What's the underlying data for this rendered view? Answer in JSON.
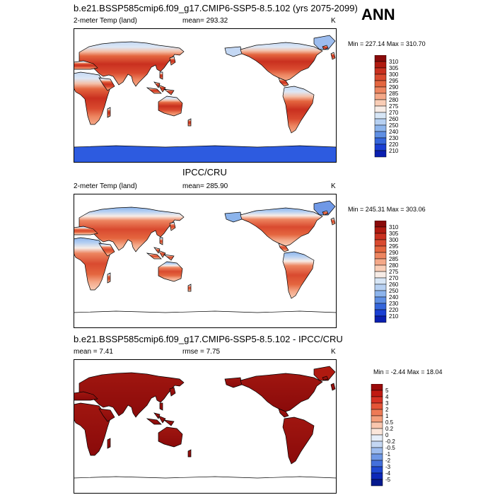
{
  "season": "ANN",
  "panels": [
    {
      "title": "b.e21.BSSP585cmip6.f09_g17.CMIP6-SSP5-8.5.102 (yrs 2075-2099)",
      "left_label": "2-meter Temp (land)",
      "center_label": "mean= 293.32",
      "units": "K",
      "minmax": "Min = 227.14 Max = 310.70",
      "colorbar": {
        "labels": [
          "310",
          "305",
          "300",
          "295",
          "290",
          "285",
          "280",
          "275",
          "270",
          "260",
          "250",
          "240",
          "230",
          "220",
          "210"
        ],
        "colors": [
          "#8a0a0a",
          "#b01a10",
          "#c9301f",
          "#d94a2f",
          "#e4663f",
          "#ed8560",
          "#f4a888",
          "#f9cdb6",
          "#f7ece6",
          "#d7e6f6",
          "#b6d0f2",
          "#8cb4ec",
          "#5f8fe3",
          "#3566db",
          "#1a3fd3",
          "#0a1fb0"
        ]
      }
    },
    {
      "title": "IPCC/CRU",
      "left_label": "2-meter Temp (land)",
      "center_label": "mean= 285.90",
      "units": "K",
      "minmax": "Min = 245.31 Max = 303.06",
      "colorbar": {
        "labels": [
          "310",
          "305",
          "300",
          "295",
          "290",
          "285",
          "280",
          "275",
          "270",
          "260",
          "250",
          "240",
          "230",
          "220",
          "210"
        ],
        "colors": [
          "#8a0a0a",
          "#b01a10",
          "#c9301f",
          "#d94a2f",
          "#e4663f",
          "#ed8560",
          "#f4a888",
          "#f9cdb6",
          "#f7ece6",
          "#d7e6f6",
          "#b6d0f2",
          "#8cb4ec",
          "#5f8fe3",
          "#3566db",
          "#1a3fd3",
          "#0a1fb0"
        ]
      }
    },
    {
      "title": "b.e21.BSSP585cmip6.f09_g17.CMIP6-SSP5-8.5.102 - IPCC/CRU",
      "left_label": "mean =   7.41",
      "center_label": "rmse =   7.75",
      "units": "K",
      "minmax": "Min =  -2.44 Max =  18.04",
      "colorbar": {
        "labels": [
          "5",
          "4",
          "3",
          "2",
          "1",
          "0.5",
          "0.2",
          "0",
          "-0.2",
          "-0.5",
          "-1",
          "-2",
          "-3",
          "-4",
          "-5"
        ],
        "colors": [
          "#9a0a0a",
          "#c01a12",
          "#d63224",
          "#e45538",
          "#ee7a56",
          "#f49f7c",
          "#f9c6ae",
          "#fbe6da",
          "#e6eef9",
          "#c4d7f3",
          "#9dbcee",
          "#6f98e6",
          "#4470dc",
          "#1f48d2",
          "#0d28b8",
          "#061a8e"
        ]
      }
    }
  ]
}
